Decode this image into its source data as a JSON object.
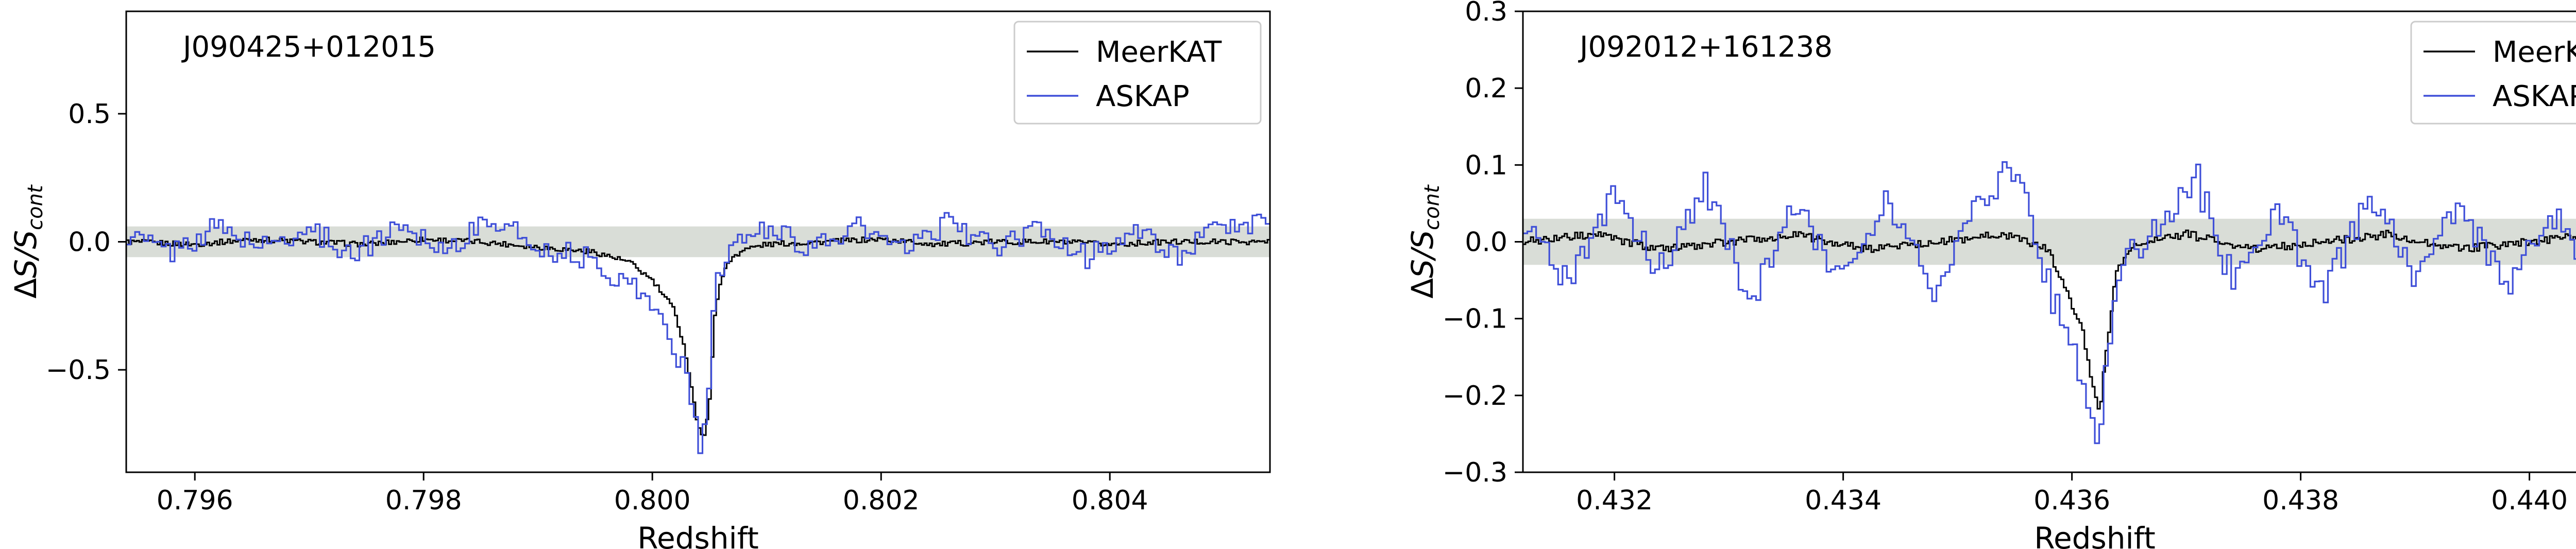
{
  "chart_data": [
    {
      "type": "line",
      "title": "J090425+012015",
      "xlabel": "Redshift",
      "ylabel": "ΔS/S_cont",
      "xlim": [
        0.7954,
        0.8054
      ],
      "ylim": [
        -0.9,
        0.9
      ],
      "xticks": [
        {
          "value": 0.796,
          "label": "0.796"
        },
        {
          "value": 0.798,
          "label": "0.798"
        },
        {
          "value": 0.8,
          "label": "0.800"
        },
        {
          "value": 0.802,
          "label": "0.802"
        },
        {
          "value": 0.804,
          "label": "0.804"
        }
      ],
      "yticks": [
        {
          "value": -0.5,
          "label": "−0.5"
        },
        {
          "value": 0.0,
          "label": "0.0"
        },
        {
          "value": 0.5,
          "label": "0.5"
        }
      ],
      "noise_band": 0.06,
      "legend": {
        "position": "top-right",
        "entries": [
          {
            "label": "MeerKAT",
            "color": "#000000"
          },
          {
            "label": "ASKAP",
            "color": "#3f4fd8"
          }
        ]
      },
      "series": [
        {
          "name": "MeerKAT",
          "color": "#000000",
          "step": "mid",
          "x": [
            0.7954,
            0.796,
            0.7965,
            0.797,
            0.7975,
            0.798,
            0.7985,
            0.799,
            0.7995,
            0.7998,
            0.8,
            0.8002,
            0.8003,
            0.8004,
            0.80045,
            0.8005,
            0.80055,
            0.8006,
            0.8007,
            0.8008,
            0.801,
            0.8015,
            0.802,
            0.8025,
            0.803,
            0.8035,
            0.804,
            0.8045,
            0.805,
            0.8054
          ],
          "y": [
            0.0,
            -0.01,
            0.01,
            0.0,
            -0.01,
            0.01,
            0.0,
            -0.02,
            -0.04,
            -0.08,
            -0.15,
            -0.27,
            -0.45,
            -0.72,
            -0.78,
            -0.62,
            -0.28,
            -0.14,
            -0.06,
            -0.03,
            -0.01,
            0.0,
            0.01,
            -0.01,
            0.0,
            0.0,
            -0.01,
            0.0,
            0.0,
            0.0
          ]
        },
        {
          "name": "ASKAP",
          "color": "#3f4fd8",
          "step": "mid",
          "x": [
            0.7954,
            0.7958,
            0.7962,
            0.7966,
            0.797,
            0.7974,
            0.7978,
            0.7982,
            0.7986,
            0.799,
            0.7994,
            0.7997,
            0.7999,
            0.8001,
            0.8003,
            0.8004,
            0.80045,
            0.8005,
            0.80055,
            0.8006,
            0.8008,
            0.8011,
            0.8014,
            0.8018,
            0.8022,
            0.8026,
            0.803,
            0.8034,
            0.8038,
            0.8042,
            0.8046,
            0.805,
            0.8054
          ],
          "y": [
            0.03,
            -0.04,
            0.06,
            -0.02,
            0.05,
            -0.05,
            0.07,
            -0.03,
            0.09,
            -0.02,
            -0.06,
            -0.14,
            -0.19,
            -0.32,
            -0.52,
            -0.77,
            -0.8,
            -0.52,
            -0.22,
            -0.1,
            0.02,
            0.05,
            -0.03,
            0.06,
            -0.04,
            0.08,
            -0.03,
            0.05,
            -0.06,
            0.04,
            -0.05,
            0.06,
            0.08
          ]
        }
      ]
    },
    {
      "type": "line",
      "title": "J092012+161238",
      "xlabel": "Redshift",
      "ylabel": "ΔS/S_cont",
      "xlim": [
        0.4312,
        0.4412
      ],
      "ylim": [
        -0.3,
        0.3
      ],
      "xticks": [
        {
          "value": 0.432,
          "label": "0.432"
        },
        {
          "value": 0.434,
          "label": "0.434"
        },
        {
          "value": 0.436,
          "label": "0.436"
        },
        {
          "value": 0.438,
          "label": "0.438"
        },
        {
          "value": 0.44,
          "label": "0.440"
        }
      ],
      "yticks": [
        {
          "value": -0.3,
          "label": "−0.3"
        },
        {
          "value": -0.2,
          "label": "−0.2"
        },
        {
          "value": -0.1,
          "label": "−0.1"
        },
        {
          "value": 0.0,
          "label": "0.0"
        },
        {
          "value": 0.1,
          "label": "0.1"
        },
        {
          "value": 0.2,
          "label": "0.2"
        },
        {
          "value": 0.3,
          "label": "0.3"
        }
      ],
      "noise_band": 0.03,
      "legend": {
        "position": "top-right",
        "entries": [
          {
            "label": "MeerKAT",
            "color": "#000000"
          },
          {
            "label": "ASKAP",
            "color": "#3f4fd8"
          }
        ]
      },
      "series": [
        {
          "name": "MeerKAT",
          "color": "#000000",
          "step": "mid",
          "x": [
            0.4312,
            0.4318,
            0.4324,
            0.433,
            0.4336,
            0.4342,
            0.4348,
            0.4354,
            0.4358,
            0.4361,
            0.4362,
            0.43625,
            0.4363,
            0.4364,
            0.4366,
            0.437,
            0.4376,
            0.4382,
            0.4388,
            0.4394,
            0.44,
            0.4406,
            0.4412
          ],
          "y": [
            0.0,
            0.01,
            -0.01,
            0.0,
            0.01,
            -0.01,
            0.0,
            0.01,
            -0.01,
            -0.12,
            -0.2,
            -0.22,
            -0.14,
            -0.03,
            0.0,
            0.01,
            -0.01,
            0.0,
            0.01,
            -0.01,
            0.0,
            0.01,
            0.0
          ]
        },
        {
          "name": "ASKAP",
          "color": "#3f4fd8",
          "step": "mid",
          "x": [
            0.4312,
            0.4316,
            0.432,
            0.4324,
            0.4328,
            0.4332,
            0.4336,
            0.434,
            0.4344,
            0.4348,
            0.4352,
            0.4355,
            0.4358,
            0.4361,
            0.4362,
            0.43625,
            0.4363,
            0.4364,
            0.4367,
            0.4371,
            0.4374,
            0.4378,
            0.4382,
            0.4386,
            0.439,
            0.4394,
            0.4398,
            0.4402,
            0.4406,
            0.441,
            0.4412
          ],
          "y": [
            0.03,
            -0.05,
            0.06,
            -0.04,
            0.07,
            -0.08,
            0.05,
            -0.06,
            0.06,
            -0.07,
            0.05,
            0.1,
            -0.06,
            -0.18,
            -0.24,
            -0.25,
            -0.15,
            -0.04,
            0.02,
            0.08,
            -0.05,
            0.04,
            -0.07,
            0.06,
            -0.04,
            0.05,
            -0.06,
            0.04,
            -0.05,
            0.03,
            0.07
          ]
        }
      ]
    }
  ]
}
